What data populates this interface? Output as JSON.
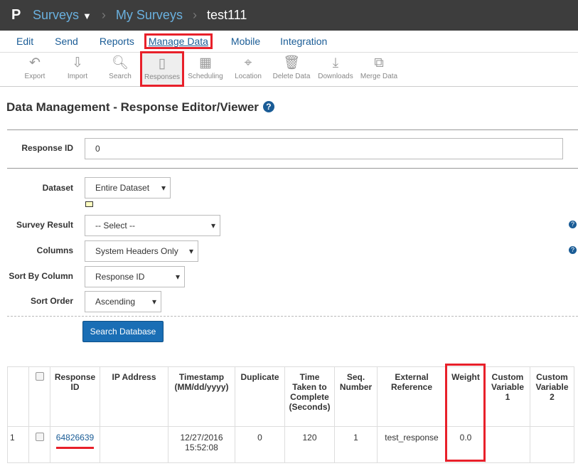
{
  "breadcrumb": {
    "app": "Surveys",
    "parent": "My Surveys",
    "current": "test111"
  },
  "menu": [
    "Edit",
    "Send",
    "Reports",
    "Manage Data",
    "Mobile",
    "Integration"
  ],
  "toolbar": [
    {
      "label": "Export",
      "icon": "export-icon"
    },
    {
      "label": "Import",
      "icon": "import-icon"
    },
    {
      "label": "Search",
      "icon": "search-icon"
    },
    {
      "label": "Responses",
      "icon": "responses-icon"
    },
    {
      "label": "Scheduling",
      "icon": "calendar-icon"
    },
    {
      "label": "Location",
      "icon": "location-pin-icon"
    },
    {
      "label": "Delete Data",
      "icon": "delete-icon"
    },
    {
      "label": "Downloads",
      "icon": "download-icon"
    },
    {
      "label": "Merge Data",
      "icon": "merge-icon"
    }
  ],
  "page": {
    "title": "Data Management - Response Editor/Viewer"
  },
  "form": {
    "response_id_label": "Response ID",
    "response_id_value": "0",
    "dataset_label": "Dataset",
    "dataset_value": "Entire Dataset",
    "survey_result_label": "Survey Result",
    "survey_result_value": "-- Select --",
    "columns_label": "Columns",
    "columns_value": "System Headers Only",
    "sort_by_label": "Sort By Column",
    "sort_by_value": "Response ID",
    "sort_order_label": "Sort Order",
    "sort_order_value": "Ascending",
    "search_button": "Search Database"
  },
  "table": {
    "headers": [
      "Response ID",
      "IP Address",
      "Timestamp (MM/dd/yyyy)",
      "Duplicate",
      "Time Taken to Complete (Seconds)",
      "Seq. Number",
      "External Reference",
      "Weight",
      "Custom Variable 1",
      "Custom Variable 2"
    ],
    "rows": [
      {
        "index": "1",
        "response_id": "64826639",
        "ip": "",
        "timestamp": "12/27/2016 15:52:08",
        "duplicate": "0",
        "time_taken": "120",
        "seq": "1",
        "external_ref": "test_response",
        "weight": "0.0",
        "cv1": "",
        "cv2": ""
      }
    ]
  },
  "colors": {
    "accent": "#1a5c96",
    "highlight": "#e8202a",
    "topbar": "#3d3d3d"
  }
}
